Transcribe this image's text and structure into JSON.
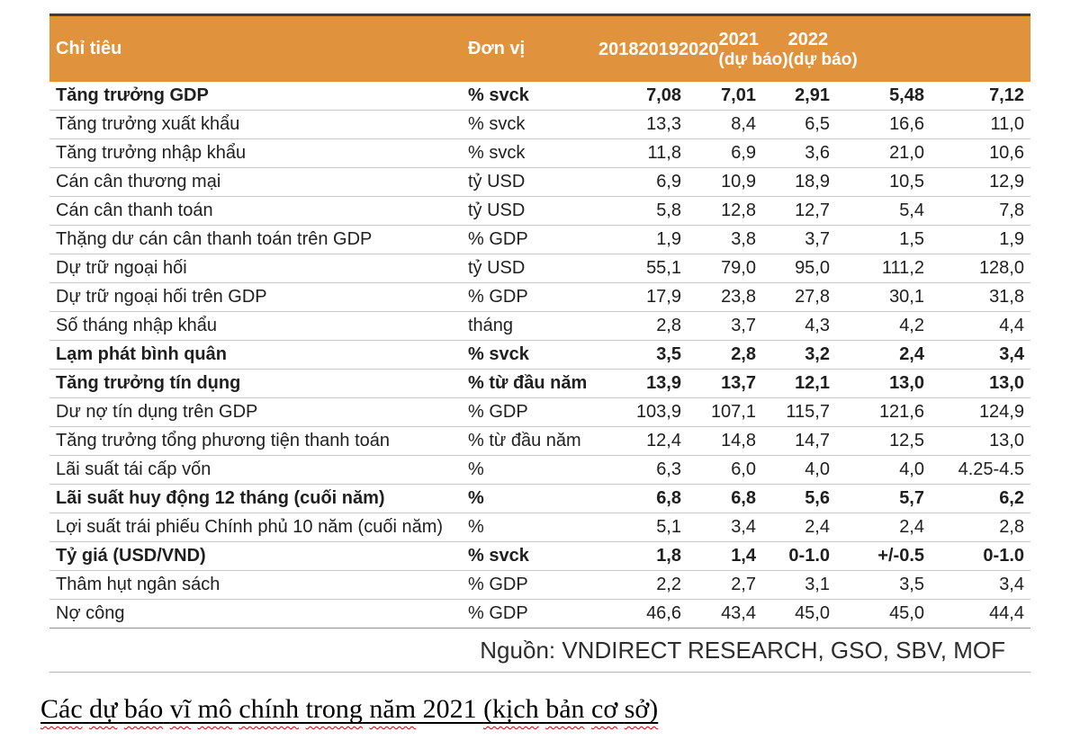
{
  "colors": {
    "accent": "#E0923D",
    "squiggle": "#CC0000",
    "header_text": "#FFFFFF"
  },
  "table": {
    "header": {
      "indicator": "Chỉ tiêu",
      "unit": "Đơn vị",
      "years": [
        {
          "label": "2018",
          "sub": ""
        },
        {
          "label": "2019",
          "sub": ""
        },
        {
          "label": "2020",
          "sub": ""
        },
        {
          "label": "2021",
          "sub": "(dự báo)"
        },
        {
          "label": "2022",
          "sub": "(dự báo)"
        }
      ]
    },
    "rows": [
      {
        "label": "Tăng trưởng GDP",
        "unit": "% svck",
        "values": [
          "7,08",
          "7,01",
          "2,91",
          "5,48",
          "7,12"
        ],
        "cls": "bold"
      },
      {
        "label": "Tăng trưởng xuất khẩu",
        "unit": "% svck",
        "values": [
          "13,3",
          "8,4",
          "6,5",
          "16,6",
          "11,0"
        ],
        "cls": ""
      },
      {
        "label": "Tăng trưởng nhập khẩu",
        "unit": "% svck",
        "values": [
          "11,8",
          "6,9",
          "3,6",
          "21,0",
          "10,6"
        ],
        "cls": ""
      },
      {
        "label": "Cán cân thương mại",
        "unit": "tỷ USD",
        "values": [
          "6,9",
          "10,9",
          "18,9",
          "10,5",
          "12,9"
        ],
        "cls": ""
      },
      {
        "label": "Cán cân thanh toán",
        "unit": "tỷ USD",
        "values": [
          "5,8",
          "12,8",
          "12,7",
          "5,4",
          "7,8"
        ],
        "cls": ""
      },
      {
        "label": "Thặng dư cán cân thanh toán trên GDP",
        "unit": "% GDP",
        "values": [
          "1,9",
          "3,8",
          "3,7",
          "1,5",
          "1,9"
        ],
        "cls": ""
      },
      {
        "label": "Dự trữ ngoại hối",
        "unit": "tỷ USD",
        "values": [
          "55,1",
          "79,0",
          "95,0",
          "111,2",
          "128,0"
        ],
        "cls": ""
      },
      {
        "label": "Dự trữ ngoại hối trên GDP",
        "unit": "% GDP",
        "values": [
          "17,9",
          "23,8",
          "27,8",
          "30,1",
          "31,8"
        ],
        "cls": ""
      },
      {
        "label": "Số tháng nhập khẩu",
        "unit": "tháng",
        "values": [
          "2,8",
          "3,7",
          "4,3",
          "4,2",
          "4,4"
        ],
        "cls": ""
      },
      {
        "label": "Lạm phát bình quân",
        "unit": "% svck",
        "values": [
          "3,5",
          "2,8",
          "3,2",
          "2,4",
          "3,4"
        ],
        "cls": "bold"
      },
      {
        "label": "Tăng trưởng tín dụng",
        "unit": "% từ đầu năm",
        "values": [
          "13,9",
          "13,7",
          "12,1",
          "13,0",
          "13,0"
        ],
        "cls": "bold"
      },
      {
        "label": "Dư nợ tín dụng trên GDP",
        "unit": "% GDP",
        "values": [
          "103,9",
          "107,1",
          "115,7",
          "121,6",
          "124,9"
        ],
        "cls": ""
      },
      {
        "label": "Tăng trưởng tổng phương tiện thanh toán",
        "unit": "% từ đầu năm",
        "values": [
          "12,4",
          "14,8",
          "14,7",
          "12,5",
          "13,0"
        ],
        "cls": ""
      },
      {
        "label": "Lãi suất tái cấp vốn",
        "unit": "%",
        "values": [
          "6,3",
          "6,0",
          "4,0",
          "4,0",
          "4.25-4.5"
        ],
        "cls": ""
      },
      {
        "label": "Lãi suất huy động 12 tháng (cuối năm)",
        "unit": "%",
        "values": [
          "6,8",
          "6,8",
          "5,6",
          "5,7",
          "6,2"
        ],
        "cls": "bold"
      },
      {
        "label": "Lợi suất trái phiếu Chính phủ 10 năm (cuối năm)",
        "unit": "%",
        "values": [
          "5,1",
          "3,4",
          "2,4",
          "2,4",
          "2,8"
        ],
        "cls": ""
      },
      {
        "label": "Tỷ giá (USD/VND)",
        "unit": "% svck",
        "values": [
          "1,8",
          "1,4",
          "0-1.0",
          "+/-0.5",
          "0-1.0"
        ],
        "cls": "bold"
      },
      {
        "label": "Thâm hụt ngân sách",
        "unit": "% GDP",
        "values": [
          "2,2",
          "2,7",
          "3,1",
          "3,5",
          "3,4"
        ],
        "cls": ""
      },
      {
        "label": "Nợ công",
        "unit": "% GDP",
        "values": [
          "46,6",
          "43,4",
          "45,0",
          "45,0",
          "44,4"
        ],
        "cls": ""
      }
    ],
    "source": "Nguồn: VNDIRECT RESEARCH, GSO, SBV, MOF"
  },
  "caption": {
    "tokens": [
      {
        "text": "Các",
        "cls": "wavy"
      },
      {
        "text": "dự",
        "cls": "wavy"
      },
      {
        "text": "báo",
        "cls": "wavy"
      },
      {
        "text": "vĩ",
        "cls": "wavy"
      },
      {
        "text": "mô",
        "cls": "wavy"
      },
      {
        "text": "chính",
        "cls": "wavy"
      },
      {
        "text": "trong",
        "cls": "wavy"
      },
      {
        "text": "năm",
        "cls": "wavy"
      },
      {
        "text": "2021",
        "cls": ""
      },
      {
        "text": "(kịch",
        "cls": "wavy"
      },
      {
        "text": "bản",
        "cls": "wavy"
      },
      {
        "text": "cơ",
        "cls": "wavy"
      },
      {
        "text": "sở)",
        "cls": "wavy"
      }
    ]
  }
}
